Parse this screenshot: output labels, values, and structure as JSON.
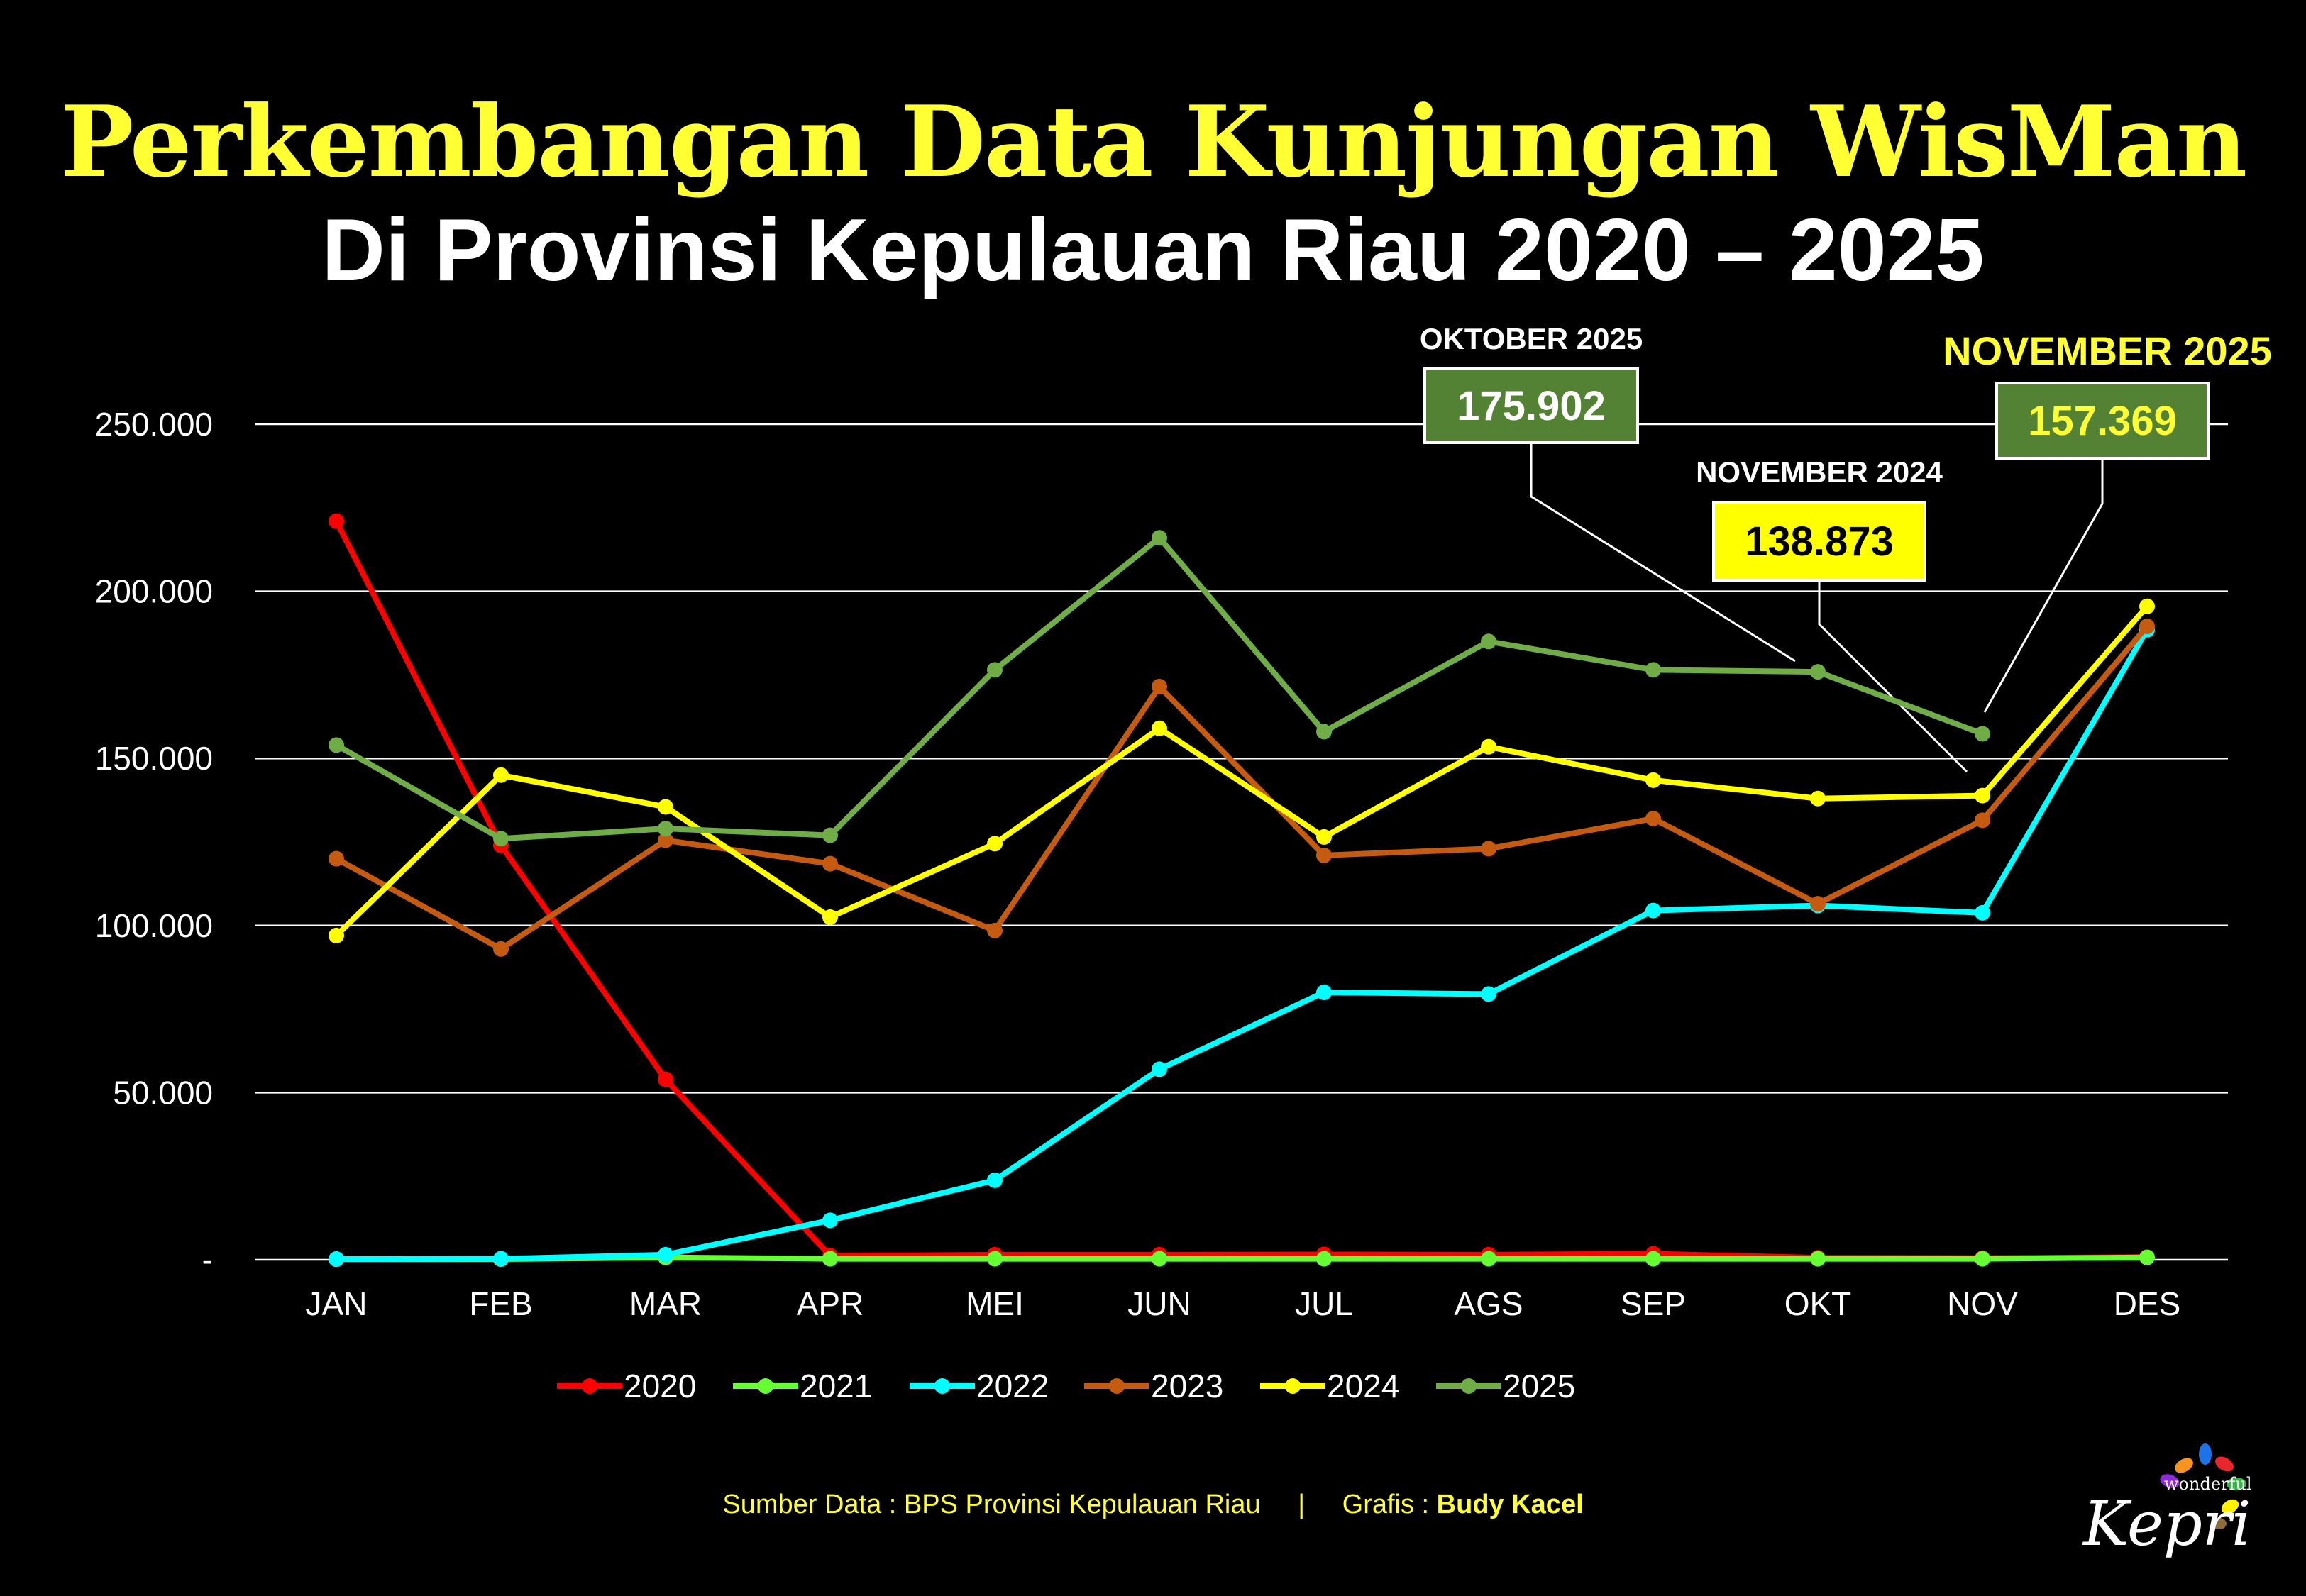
{
  "title": "Perkembangan Data Kunjungan WisMan",
  "subtitle": "Di Provinsi Kepulauan Riau 2020 – 2025",
  "footer": {
    "source_label": "Sumber Data : BPS Provinsi Kepulauan Riau",
    "separator": "|",
    "credit_prefix": "Grafis :",
    "credit_name": "Budy Kacel"
  },
  "logo": {
    "small_text": "wonderful",
    "main_text": "Kepri"
  },
  "colors": {
    "background": "#000000",
    "title": "#ffff33",
    "grid": "#ffffff",
    "callout_green": "#548235",
    "callout_yellow": "#ffff00"
  },
  "chart_data": {
    "type": "line",
    "categories": [
      "JAN",
      "FEB",
      "MAR",
      "APR",
      "MEI",
      "JUN",
      "JUL",
      "AGS",
      "SEP",
      "OKT",
      "NOV",
      "DES"
    ],
    "ylim": [
      0,
      250000
    ],
    "yticks": [
      {
        "value": 0,
        "label": "-"
      },
      {
        "value": 50000,
        "label": "50.000"
      },
      {
        "value": 100000,
        "label": "100.000"
      },
      {
        "value": 150000,
        "label": "150.000"
      },
      {
        "value": 200000,
        "label": "200.000"
      },
      {
        "value": 250000,
        "label": "250.000"
      }
    ],
    "grid": true,
    "legend": "bottom",
    "series": [
      {
        "name": "2020",
        "color": "#ff0000",
        "values": [
          221000,
          124000,
          54000,
          1200,
          1500,
          1500,
          1600,
          1500,
          1800,
          600,
          500,
          800
        ]
      },
      {
        "name": "2021",
        "color": "#66ff33",
        "values": [
          200,
          200,
          700,
          300,
          300,
          300,
          300,
          300,
          300,
          300,
          300,
          700
        ]
      },
      {
        "name": "2022",
        "color": "#00ffff",
        "values": [
          200,
          300,
          1500,
          11800,
          23800,
          57000,
          80000,
          79500,
          104500,
          106000,
          103800,
          188500
        ]
      },
      {
        "name": "2023",
        "color": "#c55a11",
        "values": [
          120000,
          93000,
          125500,
          118500,
          98500,
          171500,
          121000,
          123000,
          132000,
          106500,
          131500,
          189500
        ]
      },
      {
        "name": "2024",
        "color": "#ffff00",
        "values": [
          97000,
          145000,
          135500,
          102500,
          124500,
          159000,
          126500,
          153500,
          143500,
          138000,
          138873,
          195500
        ]
      },
      {
        "name": "2025",
        "color": "#70ad47",
        "values": [
          154000,
          126000,
          129000,
          127000,
          176500,
          216000,
          158000,
          185000,
          176500,
          175902,
          157369,
          null
        ]
      }
    ],
    "annotations": [
      {
        "title": "OKTOBER 2025",
        "value": "175.902",
        "style": "green",
        "series": "2025",
        "category": "OKT"
      },
      {
        "title": "NOVEMBER 2024",
        "value": "138.873",
        "style": "yellow",
        "series": "2024",
        "category": "NOV"
      },
      {
        "title": "NOVEMBER 2025",
        "value": "157.369",
        "style": "green-big",
        "series": "2025",
        "category": "NOV"
      }
    ]
  }
}
